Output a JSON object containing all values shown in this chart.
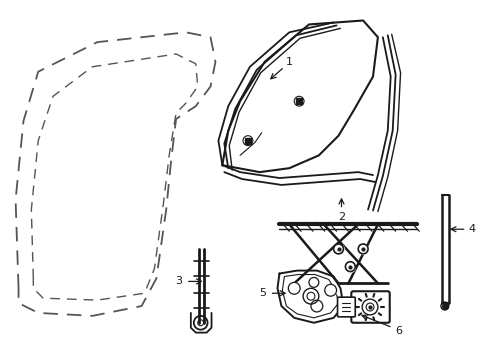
{
  "bg_color": "#ffffff",
  "line_color": "#1a1a1a",
  "dashed_color": "#555555",
  "figsize": [
    4.89,
    3.6
  ],
  "dpi": 100
}
